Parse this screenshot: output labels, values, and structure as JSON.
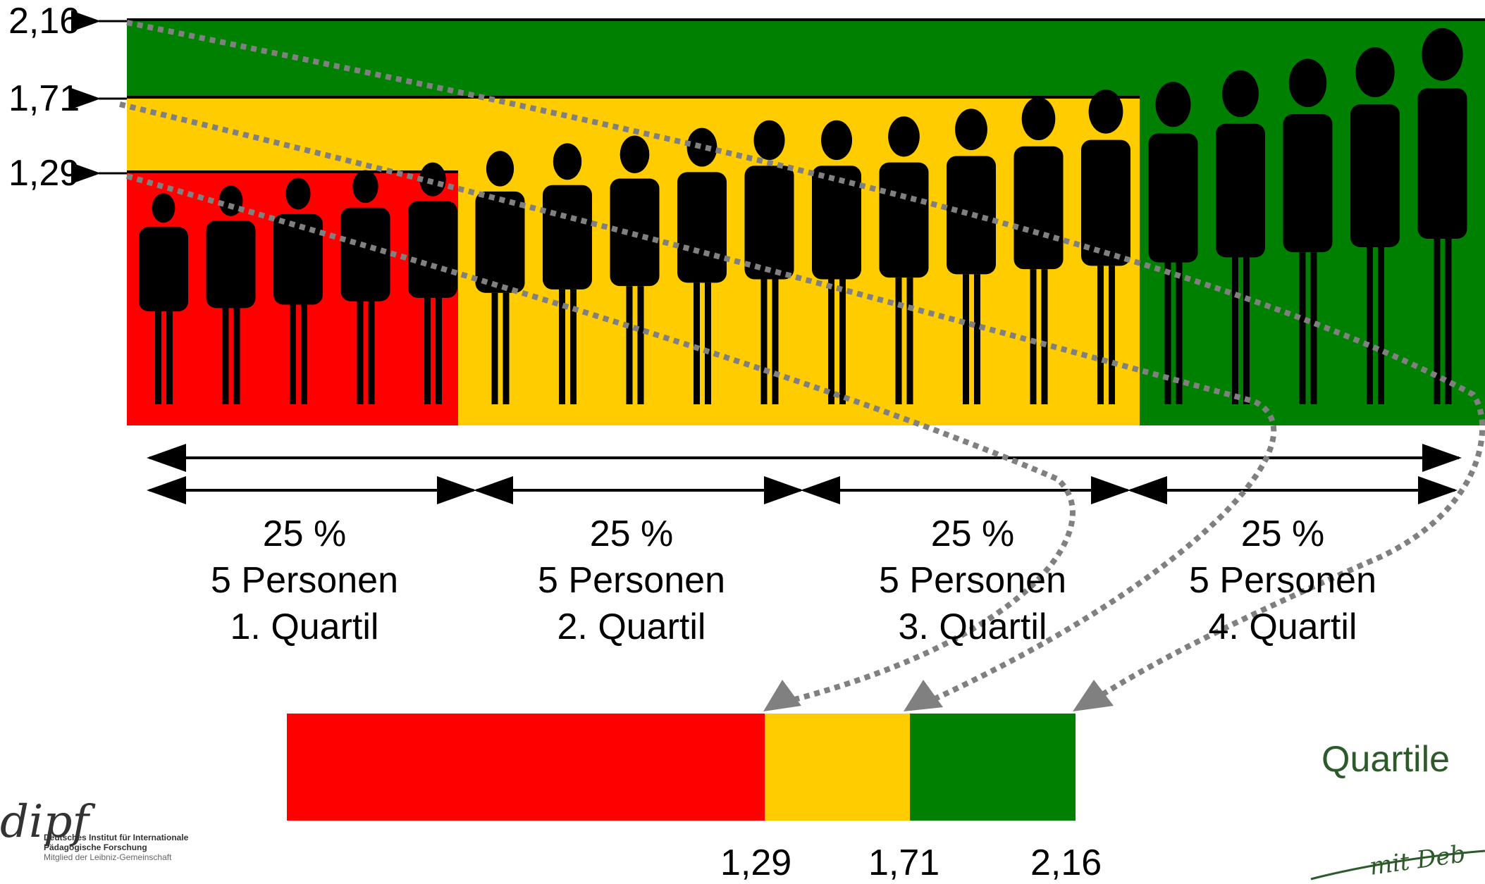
{
  "axis_values": [
    "2,16",
    "1,71",
    "1,29"
  ],
  "quartiles": [
    {
      "percent": "25 %",
      "persons": "5 Personen",
      "label": "1. Quartil",
      "color": "#ff0000"
    },
    {
      "percent": "25 %",
      "persons": "5 Personen",
      "label": "2. Quartil",
      "color": "#ffcc00"
    },
    {
      "percent": "25 %",
      "persons": "5 Personen",
      "label": "3. Quartil",
      "color": "#ffcc00"
    },
    {
      "percent": "25 %",
      "persons": "5 Personen",
      "label": "4. Quartil",
      "color": "#008000"
    }
  ],
  "people": {
    "count": 20,
    "relative_heights": [
      0.55,
      0.57,
      0.59,
      0.61,
      0.63,
      0.66,
      0.68,
      0.7,
      0.72,
      0.74,
      0.74,
      0.75,
      0.77,
      0.8,
      0.82,
      0.84,
      0.87,
      0.9,
      0.93,
      0.98
    ]
  },
  "bottom_bar": {
    "values": [
      "1,29",
      "1,71",
      "2,16"
    ],
    "label": "Quartile",
    "colors": {
      "q1": "#ff0000",
      "q2": "#ffcc00",
      "q3": "#008000"
    }
  },
  "logo": {
    "mark": "dipf",
    "line1": "Deutsches Institut für Internationale",
    "line2": "Pädagogische Forschung",
    "line3": "Mitglied der Leibniz-Gemeinschaft"
  },
  "handwriting": "mit Deb"
}
